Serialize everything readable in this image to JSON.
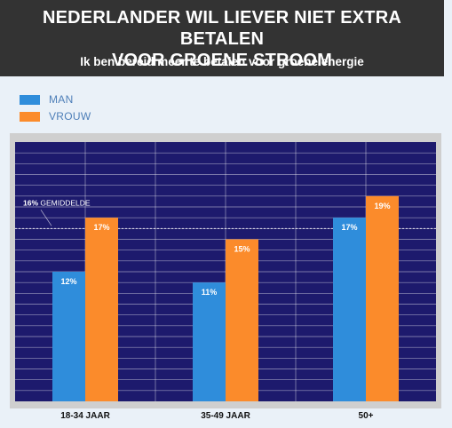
{
  "title_line1": "NEDERLANDER WIL LIEVER NIET EXTRA BETALEN",
  "title_line2": "VOOR GROENE STROOM",
  "subtitle": "Ik ben bereid meer te betalen voor groene energie",
  "legend": [
    {
      "label": "MAN",
      "color": "#2f8ddb"
    },
    {
      "label": "VROUW",
      "color": "#fb8b2b"
    }
  ],
  "colors": {
    "header_bg": "#333333",
    "plot_bg": "#1d1a6d",
    "grid": "#ffffff",
    "frame": "#cfcfcf"
  },
  "chart_data": {
    "type": "bar",
    "categories": [
      "18-34 JAAR",
      "35-49 JAAR",
      "50+"
    ],
    "series": [
      {
        "name": "MAN",
        "values": [
          12,
          11,
          17
        ],
        "labels": [
          "12%",
          "11%",
          "17%"
        ],
        "color": "#2f8ddb"
      },
      {
        "name": "VROUW",
        "values": [
          17,
          15,
          19
        ],
        "labels": [
          "17%",
          "15%",
          "19%"
        ],
        "color": "#fb8b2b"
      }
    ],
    "average": {
      "value": 16,
      "label_bold": "16%",
      "label_rest": " GEMIDDELDE"
    },
    "ylim": [
      0,
      24
    ],
    "grid": true,
    "legend_position": "top-left"
  }
}
